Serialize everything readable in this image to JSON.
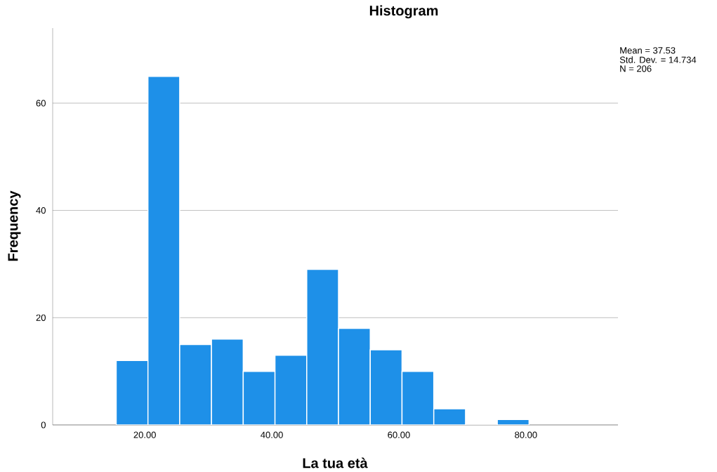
{
  "chart_data": {
    "type": "histogram",
    "title": "Histogram",
    "xlabel": "La tua età",
    "ylabel": "Frequency",
    "bins": [
      15.5,
      20.5,
      25.5,
      30.5,
      35.5,
      40.5,
      45.5,
      50.5,
      55.5,
      60.5,
      65.5,
      70.5,
      75.5,
      80.5
    ],
    "values": [
      12,
      65,
      15,
      16,
      10,
      13,
      29,
      18,
      14,
      10,
      3,
      0,
      1
    ],
    "color": "#1e90e8",
    "xlim": [
      5.5,
      94.5
    ],
    "ylim": [
      0,
      74
    ],
    "xticks": [
      {
        "value": 20,
        "label": "20.00"
      },
      {
        "value": 40,
        "label": "40.00"
      },
      {
        "value": 60,
        "label": "60.00"
      },
      {
        "value": 80,
        "label": "80.00"
      }
    ],
    "yticks": [
      0,
      20,
      40,
      60
    ],
    "grid": "y",
    "annotations": [
      "Mean = 37.53",
      "Std. Dev. = 14.734",
      "N = 206"
    ]
  }
}
